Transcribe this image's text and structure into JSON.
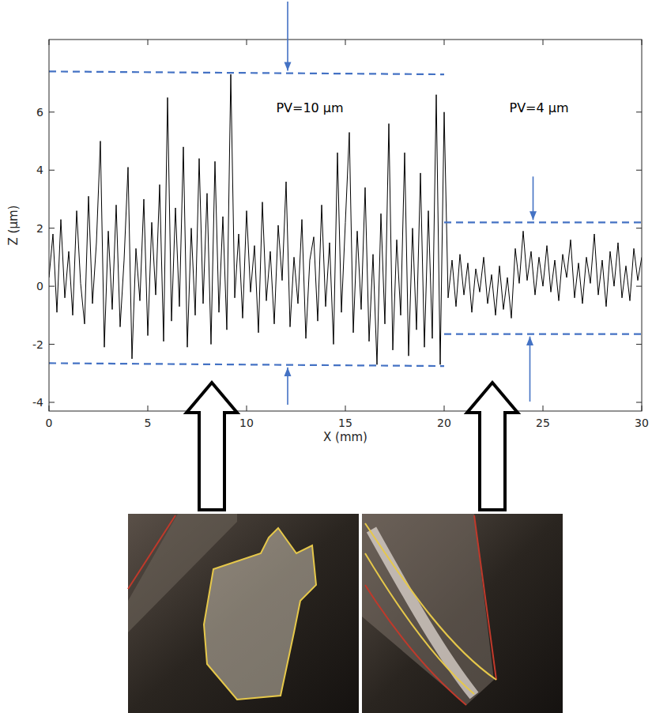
{
  "chart_data": {
    "type": "line",
    "xlabel": "X (mm)",
    "ylabel": "Z (µm)",
    "xlim": [
      0,
      30
    ],
    "xticks": [
      0,
      5,
      10,
      15,
      20,
      25,
      30
    ],
    "ylim": [
      -4.3,
      8.5
    ],
    "yticks": [
      -4,
      -2,
      0,
      2,
      4,
      6
    ],
    "grid": false,
    "color": "#000000",
    "x": [
      0,
      0.2,
      0.4,
      0.6,
      0.8,
      1,
      1.2,
      1.4,
      1.6,
      1.8,
      2,
      2.2,
      2.4,
      2.6,
      2.8,
      3,
      3.2,
      3.4,
      3.6,
      3.8,
      4,
      4.2,
      4.4,
      4.6,
      4.8,
      5,
      5.2,
      5.4,
      5.6,
      5.8,
      6,
      6.2,
      6.4,
      6.6,
      6.8,
      7,
      7.2,
      7.4,
      7.6,
      7.8,
      8,
      8.2,
      8.4,
      8.6,
      8.8,
      9,
      9.2,
      9.4,
      9.6,
      9.8,
      10,
      10.2,
      10.4,
      10.6,
      10.8,
      11,
      11.2,
      11.4,
      11.6,
      11.8,
      12,
      12.2,
      12.4,
      12.6,
      12.8,
      13,
      13.2,
      13.4,
      13.6,
      13.8,
      14,
      14.2,
      14.4,
      14.6,
      14.8,
      15,
      15.2,
      15.4,
      15.6,
      15.8,
      16,
      16.2,
      16.4,
      16.6,
      16.8,
      17,
      17.2,
      17.4,
      17.6,
      17.8,
      18,
      18.2,
      18.4,
      18.6,
      18.8,
      19,
      19.2,
      19.4,
      19.6,
      19.8,
      20,
      20.2,
      20.4,
      20.6,
      20.8,
      21,
      21.2,
      21.4,
      21.6,
      21.8,
      22,
      22.2,
      22.4,
      22.6,
      22.8,
      23,
      23.2,
      23.4,
      23.6,
      23.8,
      24,
      24.2,
      24.4,
      24.6,
      24.8,
      25,
      25.2,
      25.4,
      25.6,
      25.8,
      26,
      26.2,
      26.4,
      26.6,
      26.8,
      27,
      27.2,
      27.4,
      27.6,
      27.8,
      28,
      28.2,
      28.4,
      28.6,
      28.8,
      29,
      29.2,
      29.4,
      29.6,
      29.8,
      30
    ],
    "values": [
      0.3,
      1.8,
      -0.9,
      2.3,
      -0.4,
      1.2,
      -1.0,
      2.6,
      0.1,
      -1.3,
      3.1,
      -0.6,
      1.5,
      5.0,
      -2.1,
      1.9,
      -0.8,
      2.8,
      -1.4,
      0.9,
      4.1,
      -2.5,
      1.3,
      -0.5,
      3.0,
      -1.7,
      2.2,
      -0.3,
      3.5,
      -1.9,
      6.5,
      -1.2,
      2.7,
      -0.7,
      4.8,
      -2.1,
      2.0,
      -1.0,
      4.4,
      -0.6,
      3.2,
      -2.0,
      4.3,
      -0.9,
      2.4,
      -1.5,
      7.3,
      -0.4,
      1.8,
      -1.1,
      2.6,
      -0.2,
      1.4,
      -1.6,
      2.9,
      -0.5,
      1.2,
      -1.3,
      2.1,
      0.2,
      3.6,
      -1.4,
      1.0,
      -0.6,
      2.3,
      -1.8,
      0.9,
      1.7,
      -1.2,
      2.8,
      -0.7,
      1.5,
      -2.0,
      4.6,
      -0.9,
      2.2,
      5.3,
      -1.6,
      1.9,
      -0.8,
      3.4,
      -1.9,
      1.1,
      -2.7,
      2.5,
      -1.3,
      5.6,
      -2.2,
      1.6,
      -1.0,
      4.6,
      -2.4,
      2.0,
      -1.5,
      3.9,
      -2.1,
      2.6,
      -1.8,
      6.6,
      -2.7,
      6.0,
      -0.4,
      0.9,
      -0.7,
      1.1,
      -0.3,
      0.8,
      -0.9,
      0.6,
      -0.2,
      1.0,
      -0.6,
      0.4,
      -1.0,
      0.7,
      -0.8,
      0.3,
      -1.1,
      1.3,
      0.1,
      1.9,
      0.2,
      1.2,
      -0.3,
      1.0,
      0.0,
      1.4,
      -0.2,
      0.9,
      -0.5,
      1.1,
      0.3,
      1.6,
      -0.4,
      0.8,
      -0.6,
      1.0,
      0.1,
      1.8,
      -0.3,
      0.9,
      -0.7,
      1.2,
      0.0,
      1.5,
      -0.4,
      0.7,
      -0.5,
      1.3,
      0.2,
      1.0
    ],
    "reference_lines": [
      {
        "x": [
          0,
          20
        ],
        "y": [
          7.4,
          7.3
        ],
        "color": "#4472c4",
        "line_style": "dashed"
      },
      {
        "x": [
          0,
          20
        ],
        "y": [
          -2.65,
          -2.75
        ],
        "color": "#4472c4",
        "line_style": "dashed"
      },
      {
        "x": [
          20,
          30
        ],
        "y": [
          2.2,
          2.2
        ],
        "color": "#4472c4",
        "line_style": "dashed"
      },
      {
        "x": [
          20,
          30
        ],
        "y": [
          -1.65,
          -1.65
        ],
        "color": "#4472c4",
        "line_style": "dashed"
      }
    ],
    "annotations": [
      {
        "text": "PV=10 µm",
        "x": 13.2,
        "y": 6.0
      },
      {
        "text": "PV=4 µm",
        "x": 24.8,
        "y": 6.0
      }
    ]
  }
}
